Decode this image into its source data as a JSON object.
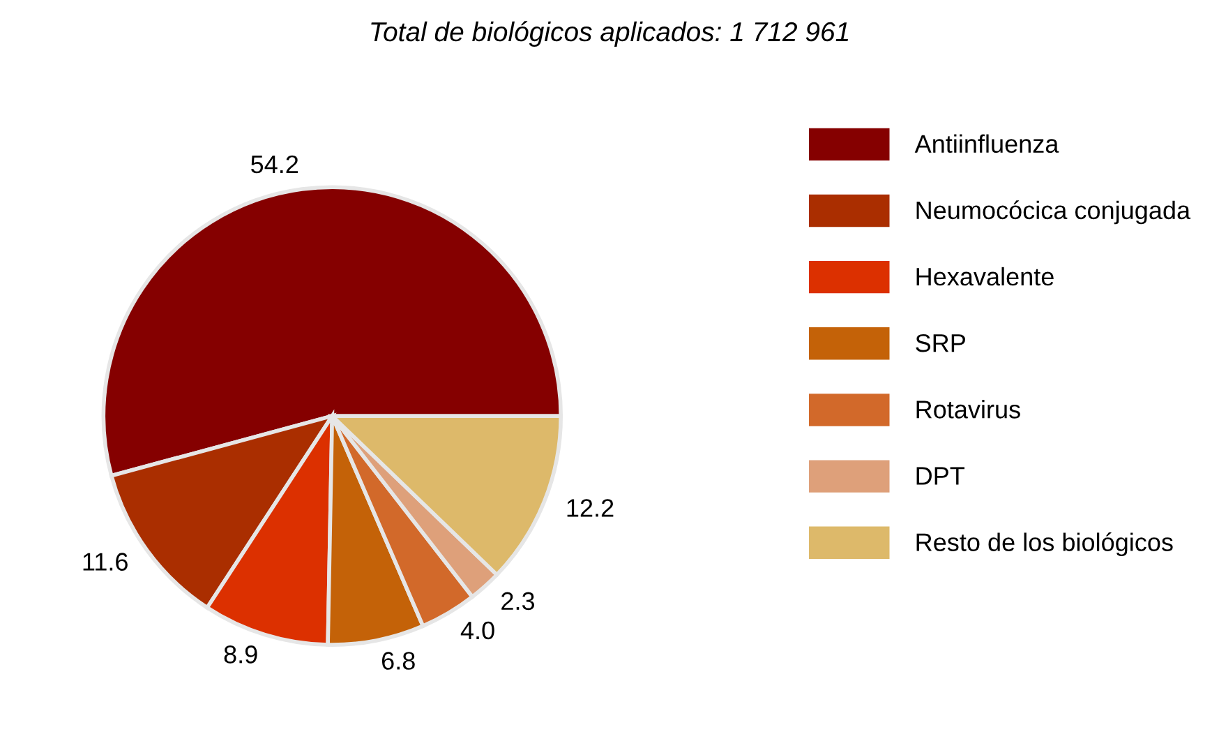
{
  "chart_data": {
    "type": "pie",
    "title": "Total de biológicos aplicados: 1 712 961",
    "categories": [
      "Antiinfluenza",
      "Neumocócica conjugada",
      "Hexavalente",
      "SRP",
      "Rotavirus",
      "DPT",
      "Resto de los biológicos"
    ],
    "values": [
      54.2,
      11.6,
      8.9,
      6.8,
      4.0,
      2.3,
      12.2
    ],
    "value_labels": [
      "54.2",
      "11.6",
      "8.9",
      "6.8",
      "4.0",
      "2.3",
      "12.2"
    ],
    "colors": [
      "#850000",
      "#aa2e00",
      "#dc3000",
      "#c46208",
      "#d2692a",
      "#dea07a",
      "#ddb96a"
    ],
    "legend": "right"
  }
}
